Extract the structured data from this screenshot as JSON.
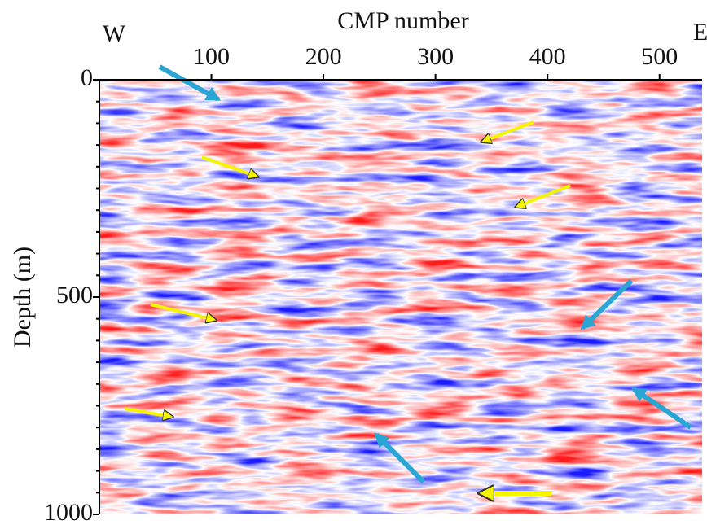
{
  "chart_data": {
    "type": "seismic-section",
    "xlabel": "CMP number",
    "ylabel": "Depth (m)",
    "annotations": [
      "W",
      "E"
    ],
    "xlim": [
      0,
      538
    ],
    "xticks": [
      100,
      200,
      300,
      400,
      500
    ],
    "ylim": [
      0,
      1000
    ],
    "yticks": [
      0,
      500,
      1000
    ],
    "yminorticks": [
      50,
      100,
      150,
      200,
      250,
      300,
      350,
      400,
      450,
      550,
      600,
      650,
      700,
      750,
      800,
      850,
      900,
      950
    ],
    "colormap": [
      "#1a1aff",
      "#ffffff",
      "#ff1a1a"
    ]
  }
}
